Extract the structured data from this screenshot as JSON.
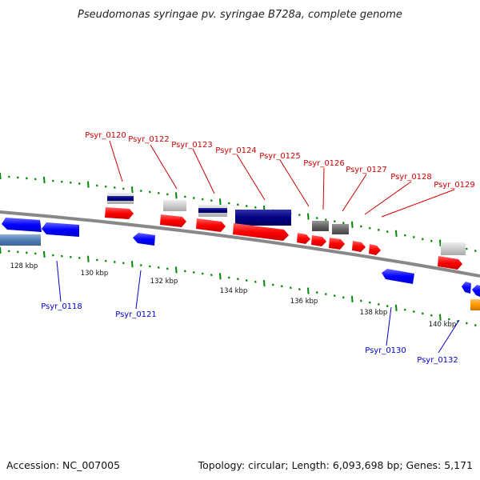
{
  "title": "Pseudomonas syringae pv. syringae B728a, complete genome",
  "footer": {
    "accession": "Accession: NC_007005",
    "topology": "Topology: circular; Length: 6,093,698 bp; Genes: 5,171"
  },
  "scale_labels": [
    "128 kbp",
    "130 kbp",
    "132 kbp",
    "134 kbp",
    "136 kbp",
    "138 kbp",
    "140 kbp"
  ],
  "genes_forward": [
    "Psyr_0120",
    "Psyr_0122",
    "Psyr_0123",
    "Psyr_0124",
    "Psyr_0125",
    "Psyr_0126",
    "Psyr_0127",
    "Psyr_0128",
    "Psyr_0129"
  ],
  "genes_reverse": [
    "Psyr_0118",
    "Psyr_0121",
    "Psyr_0130",
    "Psyr_0132"
  ],
  "colors": {
    "forward_cds": "#ff0000",
    "reverse_cds": "#0000ff",
    "label_forward": "#cc0000",
    "label_reverse": "#0000cc",
    "tick": "#008800",
    "backbone": "#888888"
  }
}
